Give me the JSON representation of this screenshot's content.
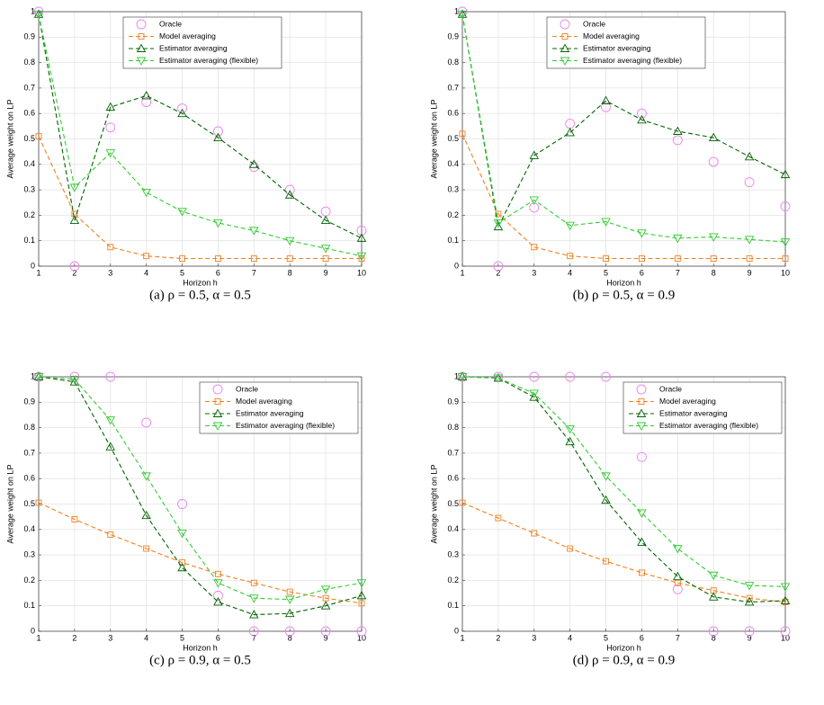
{
  "chart_data": [
    {
      "type": "line",
      "caption": "(a) ρ = 0.5,  α = 0.5",
      "xlabel": "Horizon h",
      "ylabel": "Average weight on LP",
      "x": [
        1,
        2,
        3,
        4,
        5,
        6,
        7,
        8,
        9,
        10
      ],
      "xlim": [
        1,
        10
      ],
      "xticks": [
        1,
        2,
        3,
        4,
        5,
        6,
        7,
        8,
        9,
        10
      ],
      "ylim": [
        0,
        1
      ],
      "yticks": [
        0,
        0.1,
        0.2,
        0.3,
        0.4,
        0.5,
        0.6,
        0.7,
        0.8,
        0.9,
        1
      ],
      "grid": true,
      "legend": "upper center",
      "series": [
        {
          "name": "Oracle",
          "color": "#ee82ee",
          "marker": "circle",
          "linestyle": "none",
          "values": [
            1,
            0,
            0.545,
            0.645,
            0.62,
            0.53,
            0.39,
            0.3,
            0.215,
            0.14
          ]
        },
        {
          "name": "Model averaging",
          "color": "#f08020",
          "marker": "square",
          "linestyle": "dashed",
          "values": [
            0.51,
            0.205,
            0.075,
            0.04,
            0.03,
            0.03,
            0.03,
            0.03,
            0.03,
            0.03
          ]
        },
        {
          "name": "Estimator averaging",
          "color": "#006400",
          "marker": "triangle-up",
          "linestyle": "dashed",
          "values": [
            0.99,
            0.18,
            0.625,
            0.67,
            0.6,
            0.505,
            0.4,
            0.28,
            0.18,
            0.11
          ]
        },
        {
          "name": "Estimator averaging (flexible)",
          "color": "#33cc33",
          "marker": "triangle-down",
          "linestyle": "dashed",
          "values": [
            0.99,
            0.31,
            0.445,
            0.29,
            0.215,
            0.17,
            0.14,
            0.1,
            0.07,
            0.04
          ]
        }
      ]
    },
    {
      "type": "line",
      "caption": "(b) ρ = 0.5,  α = 0.9",
      "xlabel": "Horizon h",
      "ylabel": "Average weight on LP",
      "x": [
        1,
        2,
        3,
        4,
        5,
        6,
        7,
        8,
        9,
        10
      ],
      "xlim": [
        1,
        10
      ],
      "xticks": [
        1,
        2,
        3,
        4,
        5,
        6,
        7,
        8,
        9,
        10
      ],
      "ylim": [
        0,
        1
      ],
      "yticks": [
        0,
        0.1,
        0.2,
        0.3,
        0.4,
        0.5,
        0.6,
        0.7,
        0.8,
        0.9,
        1
      ],
      "grid": true,
      "legend": "upper center",
      "series": [
        {
          "name": "Oracle",
          "color": "#ee82ee",
          "marker": "circle",
          "linestyle": "none",
          "values": [
            1,
            0,
            0.23,
            0.56,
            0.625,
            0.6,
            0.495,
            0.41,
            0.33,
            0.235
          ]
        },
        {
          "name": "Model averaging",
          "color": "#f08020",
          "marker": "square",
          "linestyle": "dashed",
          "values": [
            0.52,
            0.205,
            0.075,
            0.04,
            0.03,
            0.03,
            0.03,
            0.03,
            0.03,
            0.03
          ]
        },
        {
          "name": "Estimator averaging",
          "color": "#006400",
          "marker": "triangle-up",
          "linestyle": "dashed",
          "values": [
            0.99,
            0.155,
            0.435,
            0.525,
            0.65,
            0.575,
            0.53,
            0.505,
            0.43,
            0.36
          ]
        },
        {
          "name": "Estimator averaging (flexible)",
          "color": "#33cc33",
          "marker": "triangle-down",
          "linestyle": "dashed",
          "values": [
            0.99,
            0.17,
            0.26,
            0.16,
            0.175,
            0.13,
            0.11,
            0.115,
            0.105,
            0.095
          ]
        }
      ]
    },
    {
      "type": "line",
      "caption": "(c) ρ = 0.9,  α = 0.5",
      "xlabel": "Horizon h",
      "ylabel": "Average weight on LP",
      "x": [
        1,
        2,
        3,
        4,
        5,
        6,
        7,
        8,
        9,
        10
      ],
      "xlim": [
        1,
        10
      ],
      "xticks": [
        1,
        2,
        3,
        4,
        5,
        6,
        7,
        8,
        9,
        10
      ],
      "ylim": [
        0,
        1
      ],
      "yticks": [
        0,
        0.1,
        0.2,
        0.3,
        0.4,
        0.5,
        0.6,
        0.7,
        0.8,
        0.9,
        1
      ],
      "grid": true,
      "legend": "upper right",
      "series": [
        {
          "name": "Oracle",
          "color": "#ee82ee",
          "marker": "circle",
          "linestyle": "none",
          "values": [
            1,
            1,
            1,
            0.82,
            0.5,
            0.14,
            0,
            0,
            0,
            0
          ]
        },
        {
          "name": "Model averaging",
          "color": "#f08020",
          "marker": "square",
          "linestyle": "dashed",
          "values": [
            0.505,
            0.44,
            0.38,
            0.325,
            0.27,
            0.225,
            0.19,
            0.155,
            0.13,
            0.11
          ]
        },
        {
          "name": "Estimator averaging",
          "color": "#006400",
          "marker": "triangle-up",
          "linestyle": "dashed",
          "values": [
            1,
            0.98,
            0.725,
            0.455,
            0.25,
            0.115,
            0.065,
            0.07,
            0.1,
            0.14
          ]
        },
        {
          "name": "Estimator averaging (flexible)",
          "color": "#33cc33",
          "marker": "triangle-down",
          "linestyle": "dashed",
          "values": [
            1,
            0.99,
            0.83,
            0.61,
            0.385,
            0.19,
            0.13,
            0.125,
            0.165,
            0.19
          ]
        }
      ]
    },
    {
      "type": "line",
      "caption": "(d) ρ = 0.9,  α = 0.9",
      "xlabel": "Horizon h",
      "ylabel": "Average weight on LP",
      "x": [
        1,
        2,
        3,
        4,
        5,
        6,
        7,
        8,
        9,
        10
      ],
      "xlim": [
        1,
        10
      ],
      "xticks": [
        1,
        2,
        3,
        4,
        5,
        6,
        7,
        8,
        9,
        10
      ],
      "ylim": [
        0,
        1
      ],
      "yticks": [
        0,
        0.1,
        0.2,
        0.3,
        0.4,
        0.5,
        0.6,
        0.7,
        0.8,
        0.9,
        1
      ],
      "grid": true,
      "legend": "upper right",
      "series": [
        {
          "name": "Oracle",
          "color": "#ee82ee",
          "marker": "circle",
          "linestyle": "none",
          "values": [
            1,
            1,
            1,
            1,
            1,
            0.685,
            0.165,
            0,
            0,
            0
          ]
        },
        {
          "name": "Model averaging",
          "color": "#f08020",
          "marker": "square",
          "linestyle": "dashed",
          "values": [
            0.505,
            0.445,
            0.385,
            0.325,
            0.275,
            0.23,
            0.19,
            0.16,
            0.13,
            0.115
          ]
        },
        {
          "name": "Estimator averaging",
          "color": "#006400",
          "marker": "triangle-up",
          "linestyle": "dashed",
          "values": [
            1,
            0.995,
            0.92,
            0.745,
            0.515,
            0.35,
            0.215,
            0.135,
            0.115,
            0.12
          ]
        },
        {
          "name": "Estimator averaging (flexible)",
          "color": "#33cc33",
          "marker": "triangle-down",
          "linestyle": "dashed",
          "values": [
            1,
            0.995,
            0.935,
            0.795,
            0.61,
            0.465,
            0.325,
            0.22,
            0.18,
            0.175
          ]
        }
      ]
    }
  ]
}
